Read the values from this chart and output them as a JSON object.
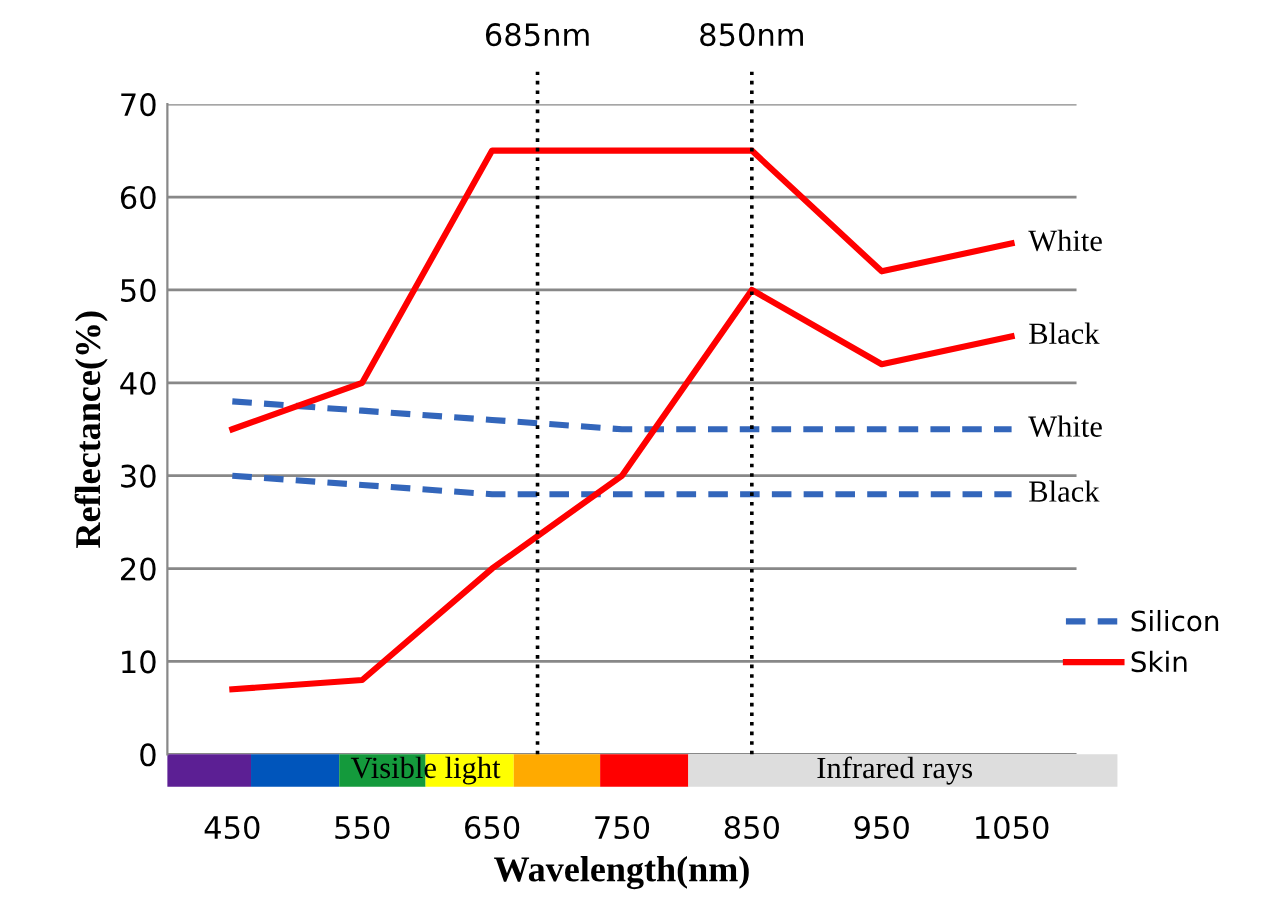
{
  "chart_data": {
    "type": "line",
    "xlabel": "Wavelength(nm)",
    "ylabel": "Reflectance(%)",
    "x": [
      450,
      550,
      650,
      750,
      850,
      950,
      1050
    ],
    "series": [
      {
        "name": "Silicon",
        "color": "#3366bb",
        "line_style": "dashed",
        "values": [
          38,
          37,
          36,
          35,
          35,
          35,
          35
        ]
      },
      {
        "color": "#3366bb",
        "line_style": "dashed",
        "values": [
          30,
          29,
          28,
          28,
          28,
          28,
          28
        ]
      },
      {
        "name": "Skin",
        "color": "#ff0000",
        "line_style": "solid",
        "values": [
          35,
          40,
          65,
          65,
          65,
          52,
          55
        ]
      },
      {
        "color": "#ff0000",
        "line_style": "solid",
        "values": [
          7,
          8,
          20,
          30,
          50,
          42,
          45
        ]
      }
    ],
    "xlim": [
      400,
      1100
    ],
    "xticks": [
      450,
      550,
      650,
      750,
      850,
      950,
      1050
    ],
    "ylim": [
      0,
      70
    ],
    "yticks": [
      0,
      10,
      20,
      30,
      40,
      50,
      60,
      70
    ],
    "grid": "y",
    "legend": "right",
    "marker": "none",
    "ref_lines": [
      {
        "axis": "x",
        "value": 685,
        "label": "685nm",
        "color": "#000000",
        "line_style": "dotted"
      },
      {
        "axis": "x",
        "value": 850,
        "label": "850nm",
        "color": "#000000",
        "line_style": "dotted"
      }
    ],
    "annotations": [
      "White",
      "Black",
      "White",
      "Black",
      "Visible light",
      "Infrared rays"
    ]
  }
}
